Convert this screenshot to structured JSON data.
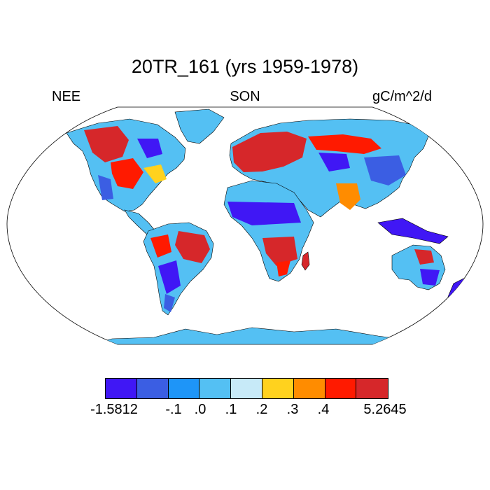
{
  "title": "20TR_161 (yrs 1959-1978)",
  "left_string": "NEE",
  "center_string": "SON",
  "right_string": "gC/m^2/d",
  "colorbar": {
    "colors": [
      "#4017f5",
      "#3b5ee3",
      "#1e95f8",
      "#54c0f3",
      "#c7eaf8",
      "#ffd21e",
      "#ff8c00",
      "#ff1a00",
      "#d6272a"
    ],
    "labels": [
      "-1.5812",
      "-.1",
      ".0",
      ".1",
      ".2",
      ".3",
      ".4",
      "5.2645"
    ]
  },
  "map": {
    "projection": "robinson",
    "ocean_color": "#ffffff",
    "outline_color": "#000000"
  }
}
